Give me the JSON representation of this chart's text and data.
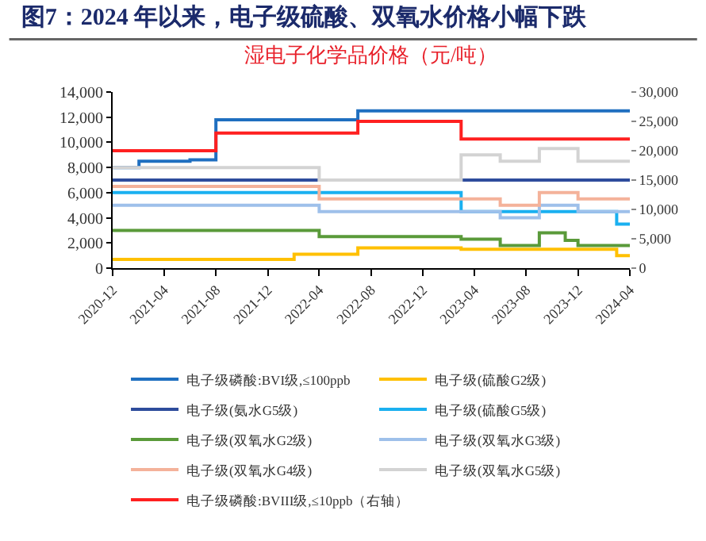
{
  "chart_data": {
    "type": "step",
    "title": "图7：2024 年以来，电子级硫酸、双氧水价格小幅下跌",
    "subtitle": "湿电子化学品价格（元/吨）",
    "xlim": [
      "2020-12",
      "2024-04"
    ],
    "xticks": [
      "2020-12",
      "2021-04",
      "2021-08",
      "2021-12",
      "2022-04",
      "2022-08",
      "2022-12",
      "2023-04",
      "2023-08",
      "2023-12",
      "2024-04"
    ],
    "ylim": [
      0,
      14000
    ],
    "yticks": [
      0,
      {
        "value": 2000,
        "label": "2,000"
      },
      {
        "value": 4000,
        "label": "4,000"
      },
      {
        "value": 6000,
        "label": "6,000"
      },
      {
        "value": 8000,
        "label": "8,000"
      },
      {
        "value": 10000,
        "label": "10,000"
      },
      {
        "value": 12000,
        "label": "12,000"
      },
      {
        "value": 14000,
        "label": "14,000"
      }
    ],
    "y2lim": [
      0,
      30000
    ],
    "y2ticks": [
      0,
      {
        "value": 5000,
        "label": "5,000"
      },
      {
        "value": 10000,
        "label": "10,000"
      },
      {
        "value": 15000,
        "label": "15,000"
      },
      {
        "value": 20000,
        "label": "20,000"
      },
      {
        "value": 25000,
        "label": "25,000"
      },
      {
        "value": 30000,
        "label": "30,000"
      }
    ],
    "grid": false,
    "legend": "bottom",
    "line_style": "solid",
    "marker": "none",
    "series": [
      {
        "name": "电子级磷酸:BVI级,≤100ppb",
        "color": "#1f6fc0",
        "x": [
          "2020-12",
          "2021-02",
          "2021-06",
          "2021-08",
          "2022-07",
          "2024-04"
        ],
        "values": [
          8000,
          8500,
          8600,
          11800,
          12500,
          12500
        ]
      },
      {
        "name": "电子级(硫酸G2级)",
        "color": "#ffc000",
        "x": [
          "2020-12",
          "2022-02",
          "2022-07",
          "2023-03",
          "2024-03",
          "2024-04"
        ],
        "values": [
          700,
          1100,
          1600,
          1500,
          1000,
          1000
        ]
      },
      {
        "name": "电子级(氨水G5级)",
        "color": "#2e4c9c",
        "x": [
          "2020-12",
          "2024-04"
        ],
        "values": [
          7000,
          7000
        ]
      },
      {
        "name": "电子级(硫酸G5级)",
        "color": "#1ab0f0",
        "x": [
          "2020-12",
          "2023-03",
          "2024-03",
          "2024-04"
        ],
        "values": [
          6000,
          4500,
          3500,
          3500
        ]
      },
      {
        "name": "电子级(双氧水G2级)",
        "color": "#5a9a3a",
        "x": [
          "2020-12",
          "2022-04",
          "2023-03",
          "2023-06",
          "2023-09",
          "2023-11",
          "2023-12",
          "2024-04"
        ],
        "values": [
          3000,
          2500,
          2300,
          1800,
          2800,
          2200,
          1800,
          1800
        ]
      },
      {
        "name": "电子级(双氧水G3级)",
        "color": "#9ec0ea",
        "x": [
          "2020-12",
          "2022-04",
          "2023-06",
          "2023-09",
          "2023-12",
          "2024-04"
        ],
        "values": [
          5000,
          4500,
          4000,
          5000,
          4500,
          4500
        ]
      },
      {
        "name": "电子级(双氧水G4级)",
        "color": "#f4b29a",
        "x": [
          "2020-12",
          "2022-04",
          "2023-06",
          "2023-09",
          "2023-12",
          "2024-04"
        ],
        "values": [
          6500,
          5500,
          5000,
          6000,
          5500,
          5500
        ]
      },
      {
        "name": "电子级(双氧水G5级)",
        "color": "#d3d3d3",
        "x": [
          "2020-12",
          "2022-04",
          "2023-03",
          "2023-06",
          "2023-09",
          "2023-12",
          "2024-04"
        ],
        "values": [
          8000,
          7000,
          9000,
          8500,
          9500,
          8500,
          8500
        ]
      },
      {
        "name": "电子级磷酸:BVIII级,≤10ppb（右轴）",
        "color": "#ff2020",
        "axis": "y2",
        "x": [
          "2020-12",
          "2021-08",
          "2022-07",
          "2023-03",
          "2024-04"
        ],
        "values": [
          20000,
          23000,
          25000,
          22000,
          22000
        ]
      }
    ]
  }
}
